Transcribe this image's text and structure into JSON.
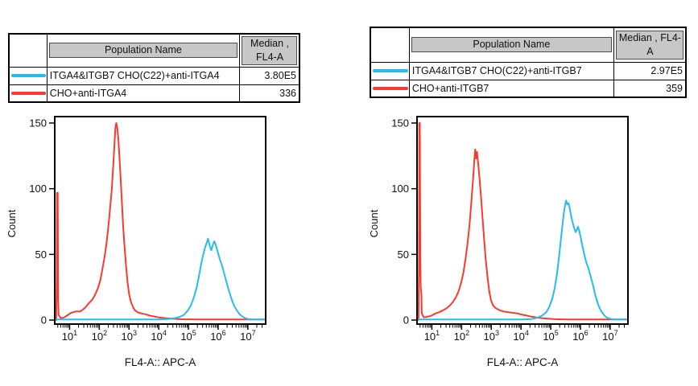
{
  "colors": {
    "red": "#f83a31",
    "cyan": "#25bdee",
    "table_header_bg": "#c7c7c7",
    "table_border": "#000000"
  },
  "panels": [
    {
      "table": {
        "population_header": "Population Name",
        "median_header": "Median , FL4-A",
        "rows": [
          {
            "color": "cyan",
            "name": "ITGA4&ITGB7 CHO(C22)+anti-ITGA4",
            "median": "3.80E5"
          },
          {
            "color": "red",
            "name": "CHO+anti-ITGA4",
            "median": "336"
          }
        ]
      }
    },
    {
      "table": {
        "population_header": "Population Name",
        "median_header": "Median , FL4-A",
        "rows": [
          {
            "color": "cyan",
            "name": "ITGA4&ITGB7 CHO(C22)+anti-ITGB7",
            "median": "2.97E5"
          },
          {
            "color": "red",
            "name": "CHO+anti-ITGB7",
            "median": "359"
          }
        ]
      }
    }
  ],
  "chart_data": [
    {
      "type": "line",
      "subtype": "flow-histogram-overlay",
      "title": "",
      "xlabel": "FL4-A:: APC-A",
      "ylabel": "Count",
      "x_scale": "log10",
      "xlim_log10": [
        0.5,
        7.6
      ],
      "x_ticks_exponents": [
        1,
        2,
        3,
        4,
        5,
        6,
        7
      ],
      "ylim": [
        0,
        150
      ],
      "y_ticks": [
        0,
        50,
        100,
        150
      ],
      "grid": false,
      "legend": "none",
      "series": [
        {
          "name": "CHO+anti-ITGA4",
          "color_key": "red",
          "median_fl4a": "336",
          "points_log10x_count": [
            [
              0.55,
              0
            ],
            [
              0.565,
              30
            ],
            [
              0.575,
              97
            ],
            [
              0.6,
              97
            ],
            [
              0.615,
              15
            ],
            [
              0.63,
              4
            ],
            [
              0.7,
              1.5
            ],
            [
              0.82,
              2
            ],
            [
              0.95,
              4
            ],
            [
              1.05,
              5.5
            ],
            [
              1.2,
              6.5
            ],
            [
              1.35,
              6.5
            ],
            [
              1.45,
              8
            ],
            [
              1.55,
              10
            ],
            [
              1.63,
              12.5
            ],
            [
              1.7,
              14
            ],
            [
              1.78,
              16
            ],
            [
              1.87,
              20
            ],
            [
              1.95,
              24
            ],
            [
              2.03,
              30
            ],
            [
              2.1,
              38
            ],
            [
              2.17,
              47
            ],
            [
              2.24,
              58
            ],
            [
              2.3,
              70
            ],
            [
              2.36,
              84
            ],
            [
              2.42,
              100
            ],
            [
              2.47,
              118
            ],
            [
              2.51,
              134
            ],
            [
              2.54,
              146
            ],
            [
              2.57,
              150
            ],
            [
              2.6,
              147
            ],
            [
              2.64,
              138
            ],
            [
              2.68,
              124
            ],
            [
              2.72,
              107
            ],
            [
              2.76,
              90
            ],
            [
              2.8,
              72
            ],
            [
              2.85,
              56
            ],
            [
              2.9,
              41
            ],
            [
              2.95,
              29
            ],
            [
              3.0,
              20
            ],
            [
              3.06,
              14
            ],
            [
              3.13,
              10
            ],
            [
              3.2,
              7.5
            ],
            [
              3.3,
              5.8
            ],
            [
              3.42,
              5
            ],
            [
              3.55,
              4.5
            ],
            [
              3.68,
              3.5
            ],
            [
              3.82,
              2.8
            ],
            [
              4.0,
              2
            ],
            [
              4.2,
              1.5
            ],
            [
              4.45,
              1
            ],
            [
              4.8,
              0.6
            ],
            [
              5.3,
              0.4
            ],
            [
              6.0,
              0.4
            ],
            [
              6.8,
              0.4
            ],
            [
              7.55,
              0.4
            ]
          ]
        },
        {
          "name": "ITGA4&ITGB7 CHO(C22)+anti-ITGA4",
          "color_key": "cyan",
          "median_fl4a": "3.80E5",
          "points_log10x_count": [
            [
              0.55,
              0.4
            ],
            [
              1.5,
              0.4
            ],
            [
              2.5,
              0.4
            ],
            [
              3.5,
              0.4
            ],
            [
              4.05,
              0.5
            ],
            [
              4.3,
              0.8
            ],
            [
              4.55,
              1.5
            ],
            [
              4.72,
              2.5
            ],
            [
              4.85,
              4
            ],
            [
              4.97,
              7
            ],
            [
              5.08,
              11
            ],
            [
              5.18,
              17
            ],
            [
              5.28,
              25
            ],
            [
              5.36,
              34
            ],
            [
              5.44,
              44
            ],
            [
              5.51,
              51
            ],
            [
              5.57,
              56
            ],
            [
              5.62,
              59
            ],
            [
              5.66,
              62
            ],
            [
              5.71,
              57
            ],
            [
              5.77,
              53
            ],
            [
              5.82,
              57
            ],
            [
              5.87,
              60
            ],
            [
              5.91,
              58
            ],
            [
              5.96,
              54
            ],
            [
              6.01,
              50
            ],
            [
              6.06,
              46
            ],
            [
              6.11,
              43
            ],
            [
              6.16,
              39
            ],
            [
              6.22,
              34
            ],
            [
              6.28,
              29
            ],
            [
              6.34,
              24
            ],
            [
              6.41,
              19
            ],
            [
              6.48,
              14
            ],
            [
              6.56,
              10
            ],
            [
              6.64,
              7
            ],
            [
              6.72,
              4.5
            ],
            [
              6.8,
              3
            ],
            [
              6.88,
              1.8
            ],
            [
              6.97,
              1
            ],
            [
              7.1,
              0.5
            ],
            [
              7.3,
              0.4
            ],
            [
              7.55,
              0.4
            ]
          ]
        }
      ]
    },
    {
      "type": "line",
      "subtype": "flow-histogram-overlay",
      "title": "",
      "xlabel": "FL4-A:: APC-A",
      "ylabel": "Count",
      "x_scale": "log10",
      "xlim_log10": [
        0.5,
        7.6
      ],
      "x_ticks_exponents": [
        1,
        2,
        3,
        4,
        5,
        6,
        7
      ],
      "ylim": [
        0,
        150
      ],
      "y_ticks": [
        0,
        50,
        100,
        150
      ],
      "grid": false,
      "legend": "none",
      "series": [
        {
          "name": "CHO+anti-ITGB7",
          "color_key": "red",
          "median_fl4a": "359",
          "points_log10x_count": [
            [
              0.55,
              0
            ],
            [
              0.565,
              40
            ],
            [
              0.575,
              150
            ],
            [
              0.595,
              150
            ],
            [
              0.61,
              45
            ],
            [
              0.625,
              25
            ],
            [
              0.645,
              20
            ],
            [
              0.66,
              5
            ],
            [
              0.73,
              2
            ],
            [
              0.85,
              2.5
            ],
            [
              1.0,
              3.5
            ],
            [
              1.12,
              5
            ],
            [
              1.25,
              6
            ],
            [
              1.38,
              7.5
            ],
            [
              1.5,
              9
            ],
            [
              1.6,
              11
            ],
            [
              1.7,
              13.5
            ],
            [
              1.8,
              17
            ],
            [
              1.9,
              22
            ],
            [
              1.98,
              28
            ],
            [
              2.06,
              36
            ],
            [
              2.13,
              46
            ],
            [
              2.2,
              58
            ],
            [
              2.27,
              73
            ],
            [
              2.33,
              90
            ],
            [
              2.39,
              108
            ],
            [
              2.43,
              122
            ],
            [
              2.46,
              130
            ],
            [
              2.49,
              123
            ],
            [
              2.52,
              128
            ],
            [
              2.56,
              119
            ],
            [
              2.61,
              106
            ],
            [
              2.66,
              92
            ],
            [
              2.71,
              76
            ],
            [
              2.76,
              61
            ],
            [
              2.81,
              47
            ],
            [
              2.87,
              33
            ],
            [
              2.93,
              22
            ],
            [
              2.99,
              15
            ],
            [
              3.06,
              11
            ],
            [
              3.15,
              9
            ],
            [
              3.28,
              7.5
            ],
            [
              3.42,
              6.5
            ],
            [
              3.58,
              6
            ],
            [
              3.72,
              5.5
            ],
            [
              3.88,
              5
            ],
            [
              4.02,
              4.2
            ],
            [
              4.18,
              3.4
            ],
            [
              4.35,
              2.6
            ],
            [
              4.52,
              2
            ],
            [
              4.7,
              1.5
            ],
            [
              4.9,
              1.1
            ],
            [
              5.15,
              0.7
            ],
            [
              5.5,
              0.4
            ],
            [
              6.2,
              0.4
            ],
            [
              7.0,
              0.4
            ],
            [
              7.55,
              0.4
            ]
          ]
        },
        {
          "name": "ITGA4&ITGB7 CHO(C22)+anti-ITGB7",
          "color_key": "cyan",
          "median_fl4a": "2.97E5",
          "points_log10x_count": [
            [
              0.55,
              0.4
            ],
            [
              1.5,
              0.4
            ],
            [
              2.5,
              0.4
            ],
            [
              3.5,
              0.4
            ],
            [
              4.1,
              0.5
            ],
            [
              4.35,
              0.8
            ],
            [
              4.55,
              1.8
            ],
            [
              4.72,
              3.5
            ],
            [
              4.85,
              6
            ],
            [
              4.95,
              10
            ],
            [
              5.05,
              16
            ],
            [
              5.13,
              24
            ],
            [
              5.21,
              35
            ],
            [
              5.28,
              48
            ],
            [
              5.34,
              61
            ],
            [
              5.4,
              73
            ],
            [
              5.45,
              83
            ],
            [
              5.49,
              88
            ],
            [
              5.52,
              91
            ],
            [
              5.56,
              88
            ],
            [
              5.6,
              89
            ],
            [
              5.64,
              85
            ],
            [
              5.69,
              79
            ],
            [
              5.74,
              74
            ],
            [
              5.79,
              70
            ],
            [
              5.84,
              67
            ],
            [
              5.88,
              69
            ],
            [
              5.92,
              71
            ],
            [
              5.96,
              68
            ],
            [
              6.01,
              63
            ],
            [
              6.06,
              57
            ],
            [
              6.11,
              52
            ],
            [
              6.16,
              47
            ],
            [
              6.21,
              43
            ],
            [
              6.26,
              40
            ],
            [
              6.31,
              36
            ],
            [
              6.37,
              31
            ],
            [
              6.43,
              26
            ],
            [
              6.49,
              20
            ],
            [
              6.55,
              15
            ],
            [
              6.61,
              11
            ],
            [
              6.67,
              8
            ],
            [
              6.74,
              5.5
            ],
            [
              6.81,
              3.5
            ],
            [
              6.88,
              2
            ],
            [
              6.96,
              1.2
            ],
            [
              7.07,
              0.6
            ],
            [
              7.25,
              0.4
            ],
            [
              7.55,
              0.4
            ]
          ]
        }
      ]
    }
  ]
}
